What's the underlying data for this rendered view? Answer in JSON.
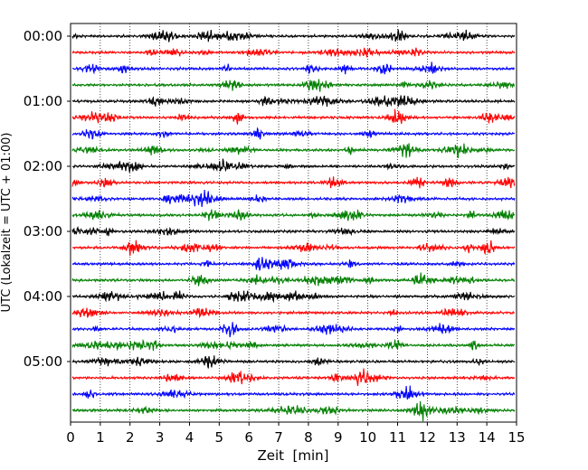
{
  "chart_data": {
    "type": "line",
    "title": "",
    "xlabel": "Zeit  [min]",
    "ylabel": "UTC (Lokalzeit = UTC + 01:00)",
    "xlim": [
      0,
      15
    ],
    "x_ticks": [
      "0",
      "1",
      "2",
      "3",
      "4",
      "5",
      "6",
      "7",
      "8",
      "9",
      "10",
      "11",
      "12",
      "13",
      "14",
      "15"
    ],
    "y_ticks": [
      "00:00",
      "01:00",
      "02:00",
      "03:00",
      "04:00",
      "05:00"
    ],
    "trace_interval_min": 15,
    "trace_count": 24,
    "trace_colors": [
      "#000000",
      "#ff0000",
      "#0000ff",
      "#008000"
    ],
    "grid": "vertical dotted lines at each minute",
    "legend": "none"
  }
}
